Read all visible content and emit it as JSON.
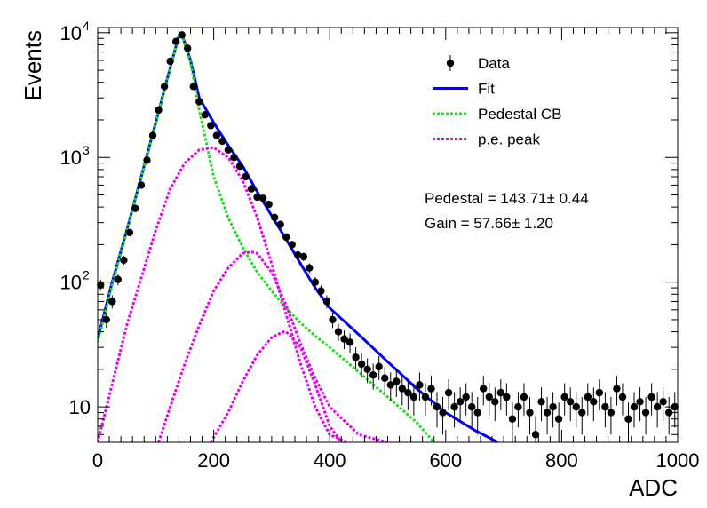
{
  "chart_data": {
    "type": "scatter",
    "xlabel": "ADC",
    "ylabel": "Events",
    "xlim": [
      0,
      1000
    ],
    "ylim": [
      5.2,
      11000
    ],
    "yscale": "log",
    "x_ticks": [
      0,
      200,
      400,
      600,
      800,
      1000
    ],
    "y_ticks": [
      {
        "value": 10,
        "base": "10",
        "exp": ""
      },
      {
        "value": 100,
        "base": "10",
        "exp": "2"
      },
      {
        "value": 1000,
        "base": "10",
        "exp": "3"
      },
      {
        "value": 10000,
        "base": "10",
        "exp": "4"
      }
    ],
    "legend": {
      "position": "top-right",
      "entries": [
        {
          "label": "Data",
          "kind": "marker",
          "color": "#000000"
        },
        {
          "label": "Fit",
          "kind": "solid",
          "color": "#0000ee"
        },
        {
          "label": "Pedestal CB",
          "kind": "dotted",
          "color": "#22dd22"
        },
        {
          "label": "p.e. peak",
          "kind": "dotted",
          "color": "#ee00ee"
        }
      ]
    },
    "annotations": [
      "Pedestal = 143.71± 0.44",
      "Gain = 57.66± 1.20"
    ],
    "data": {
      "x": [
        5,
        15,
        25,
        35,
        45,
        55,
        65,
        75,
        85,
        95,
        105,
        115,
        125,
        135,
        145,
        155,
        165,
        175,
        185,
        195,
        205,
        215,
        225,
        235,
        245,
        255,
        265,
        275,
        285,
        295,
        305,
        315,
        325,
        335,
        345,
        355,
        365,
        375,
        385,
        395,
        405,
        415,
        425,
        435,
        445,
        455,
        465,
        475,
        485,
        495,
        505,
        515,
        525,
        535,
        545,
        555,
        565,
        575,
        585,
        595,
        605,
        615,
        625,
        635,
        645,
        655,
        665,
        675,
        685,
        695,
        705,
        715,
        725,
        735,
        745,
        755,
        765,
        775,
        785,
        795,
        805,
        815,
        825,
        835,
        845,
        855,
        865,
        875,
        885,
        895,
        905,
        915,
        925,
        935,
        945,
        955,
        965,
        975,
        985,
        995
      ],
      "y": [
        95,
        50,
        70,
        105,
        150,
        250,
        390,
        600,
        950,
        1500,
        2400,
        3700,
        5900,
        8500,
        9600,
        7500,
        3700,
        2800,
        2200,
        1800,
        1500,
        1350,
        1150,
        1000,
        850,
        700,
        560,
        480,
        470,
        420,
        330,
        290,
        230,
        200,
        165,
        160,
        130,
        100,
        85,
        70,
        50,
        40,
        35,
        33,
        25,
        22,
        20,
        18,
        21,
        17,
        15,
        16,
        14,
        13,
        12,
        15,
        12,
        14,
        10,
        9,
        13,
        10,
        11,
        12,
        10,
        9,
        14,
        12,
        11,
        13,
        12,
        8,
        10,
        12,
        9,
        6,
        11,
        9,
        10,
        8,
        12,
        11,
        10,
        9,
        12,
        11,
        13,
        10,
        9,
        14,
        12,
        8,
        10,
        11,
        9,
        12,
        10,
        11,
        9,
        10
      ]
    },
    "series": [
      {
        "name": "Fit",
        "color": "#0000ee",
        "x": [
          0,
          25,
          50,
          75,
          100,
          120,
          140,
          145,
          160,
          175,
          200,
          225,
          250,
          275,
          300,
          325,
          350,
          375,
          400,
          450,
          500,
          550,
          600,
          650,
          690
        ],
        "y": [
          35,
          100,
          260,
          700,
          1900,
          4300,
          9500,
          9800,
          6000,
          3000,
          1900,
          1250,
          850,
          530,
          340,
          220,
          140,
          90,
          62,
          38,
          23,
          14,
          9,
          6.5,
          5.2
        ]
      },
      {
        "name": "Pedestal CB",
        "color": "#22dd22",
        "x": [
          0,
          25,
          50,
          75,
          100,
          120,
          140,
          145,
          160,
          175,
          200,
          225,
          250,
          275,
          300,
          325,
          350,
          375,
          400,
          450,
          500,
          550,
          580
        ],
        "y": [
          33,
          95,
          255,
          680,
          1850,
          4200,
          9500,
          9600,
          5800,
          2400,
          700,
          330,
          190,
          120,
          85,
          62,
          47,
          37,
          30,
          19,
          12,
          7.5,
          5.2
        ]
      },
      {
        "name": "p.e. peak 1",
        "color": "#ee00ee",
        "x": [
          0,
          50,
          100,
          125,
          150,
          175,
          200,
          225,
          250,
          275,
          300,
          325,
          350,
          375,
          400,
          430
        ],
        "y": [
          5.2,
          45,
          260,
          560,
          900,
          1150,
          1200,
          1000,
          650,
          330,
          140,
          55,
          22,
          10,
          6,
          5.2
        ]
      },
      {
        "name": "p.e. peak 2",
        "color": "#ee00ee",
        "x": [
          105,
          125,
          150,
          175,
          200,
          225,
          250,
          265,
          275,
          300,
          325,
          350,
          375,
          400,
          450,
          500
        ],
        "y": [
          5.2,
          10,
          22,
          45,
          85,
          130,
          170,
          175,
          170,
          120,
          65,
          32,
          17,
          10,
          6,
          5.2
        ]
      },
      {
        "name": "p.e. peak 3",
        "color": "#ee00ee",
        "x": [
          195,
          225,
          250,
          275,
          300,
          320,
          325,
          350,
          375,
          400,
          420
        ],
        "y": [
          5.2,
          9,
          16,
          26,
          36,
          40,
          40,
          30,
          15,
          7,
          5.2
        ]
      }
    ]
  }
}
